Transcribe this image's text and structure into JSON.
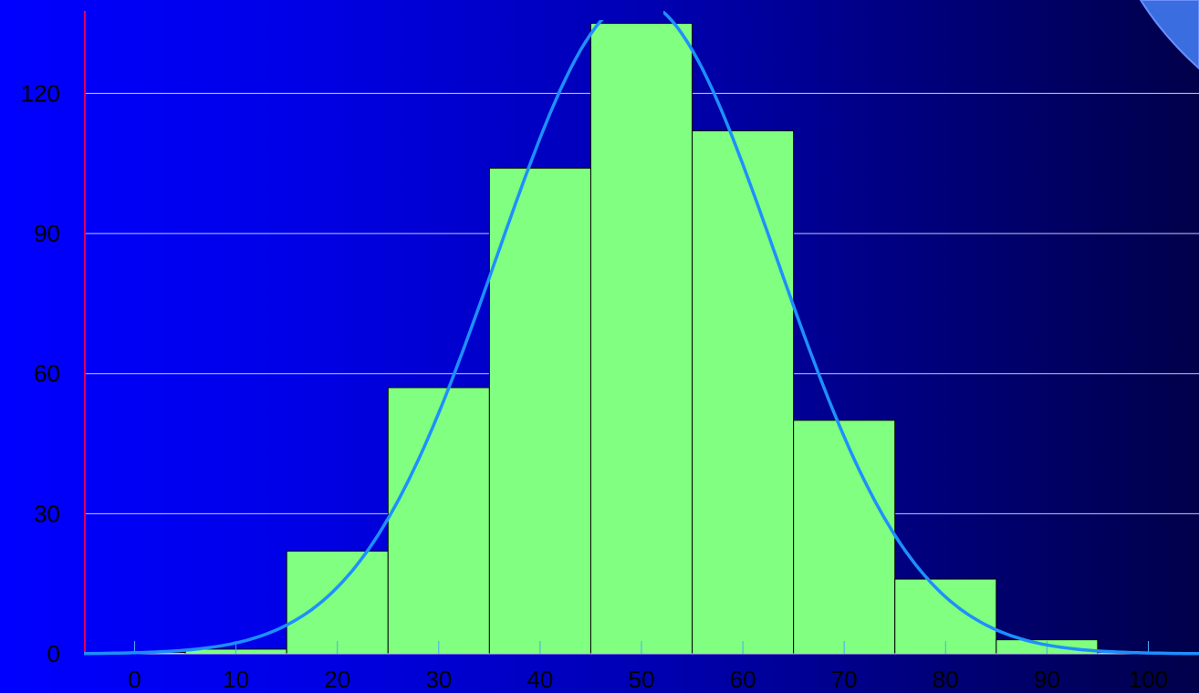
{
  "chart_data": {
    "type": "bar",
    "title": "",
    "xlabel": "",
    "ylabel": "",
    "bin_centers": [
      0,
      10,
      20,
      30,
      40,
      50,
      60,
      70,
      80,
      90,
      100
    ],
    "bin_width": 10,
    "values": [
      0.3,
      1,
      22,
      57,
      104,
      135,
      112,
      50,
      16,
      3,
      0.3
    ],
    "x_ticks": [
      0,
      10,
      20,
      30,
      40,
      50,
      60,
      70,
      80,
      90,
      100
    ],
    "x_tick_labels": [
      "0",
      "10",
      "20",
      "30",
      "40",
      "50",
      "60",
      "70",
      "80",
      "90",
      "100"
    ],
    "y_ticks": [
      0,
      30,
      60,
      90,
      120
    ],
    "y_tick_labels": [
      "0",
      "30",
      "60",
      "90",
      "120"
    ],
    "xlim": [
      -5,
      105
    ],
    "ylim": [
      0,
      140
    ],
    "grid": true,
    "overlay_curve": {
      "type": "normal-density",
      "mean": 49.5,
      "sd": 13.8,
      "peak": 140,
      "color": "#1e8fff"
    },
    "colors": {
      "bar_fill": "#80ff80",
      "bar_stroke": "#000000",
      "gridline": "#c8c8ff",
      "y_axis": "#e0005a",
      "curve": "#1e8fff",
      "tick_label": "#000000"
    }
  }
}
